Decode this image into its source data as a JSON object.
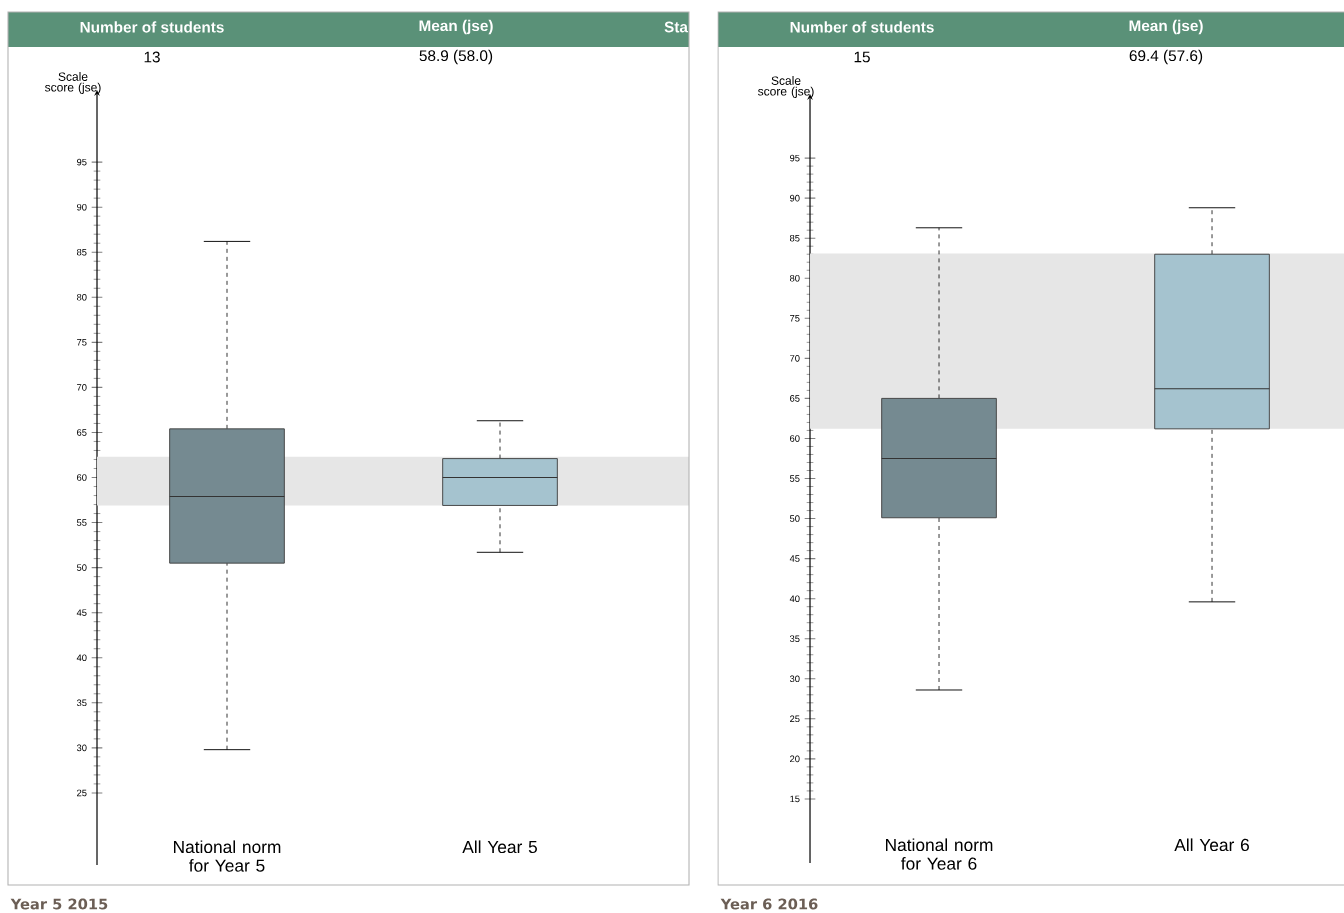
{
  "chart_data": [
    {
      "type": "box",
      "title": "Year 5  2015",
      "ylabel": "Scale score (jse)",
      "categories": [
        "National norm for Year 5",
        "All Year 5"
      ],
      "boxes": [
        {
          "low": 29.8,
          "q1": 50.5,
          "median": 57.9,
          "q3": 65.4,
          "high": 86.2
        },
        {
          "low": 51.7,
          "q1": 56.9,
          "median": 60.0,
          "q3": 62.1,
          "high": 66.3
        }
      ],
      "colors": [
        "#758a91",
        "#a5c3cf"
      ],
      "ylim": [
        17,
        103
      ],
      "yticks": [
        25,
        30,
        35,
        40,
        45,
        50,
        55,
        60,
        65,
        70,
        75,
        80,
        85,
        90,
        95
      ],
      "bands": [
        {
          "axis": "y",
          "from": 56.9,
          "to": 62.3,
          "color": "#e6e6e6"
        }
      ],
      "annotations": [
        "Number of students",
        "Mean (jse)",
        "13",
        "58.9 (58.0)",
        "Sta"
      ]
    },
    {
      "type": "box",
      "title": "Year 6  2016",
      "ylabel": "Scale score (jse)",
      "categories": [
        "National norm for Year 6",
        "All Year 6"
      ],
      "boxes": [
        {
          "low": 28.6,
          "q1": 50.1,
          "median": 57.5,
          "q3": 65.0,
          "high": 86.3
        },
        {
          "low": 39.6,
          "q1": 61.2,
          "median": 66.2,
          "q3": 83.0,
          "high": 88.8
        }
      ],
      "colors": [
        "#758a91",
        "#a5c3cf"
      ],
      "ylim": [
        7,
        103
      ],
      "yticks": [
        15,
        20,
        25,
        30,
        35,
        40,
        45,
        50,
        55,
        60,
        65,
        70,
        75,
        80,
        85,
        90,
        95
      ],
      "bands": [
        {
          "axis": "y",
          "from": 61.2,
          "to": 83.1,
          "color": "#e6e6e6"
        }
      ],
      "annotations": [
        "Number of students",
        "Mean (jse)",
        "15",
        "69.4 (57.6)"
      ]
    }
  ]
}
